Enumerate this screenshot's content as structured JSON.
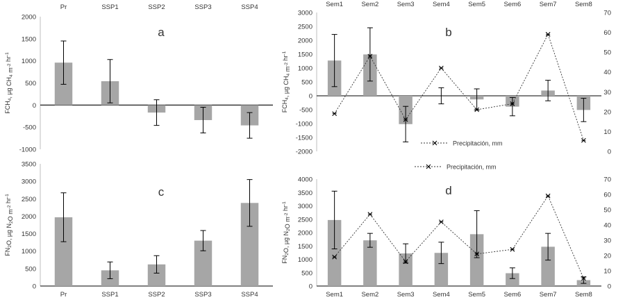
{
  "colors": {
    "bar": "#a6a6a6",
    "axis": "#000000",
    "line": "#333333",
    "text": "#404040"
  },
  "chart_data": [
    {
      "panel": "a",
      "type": "bar",
      "categories": [
        "Pr",
        "SSP1",
        "SSP2",
        "SSP3",
        "SSP4"
      ],
      "values": [
        960,
        540,
        -170,
        -340,
        -460
      ],
      "errors": [
        490,
        490,
        290,
        290,
        290
      ],
      "ylabel": "FCH4, µg CH4 m-2 hr-1",
      "ylim": [
        -1000,
        2000
      ],
      "yticks": [
        "2000",
        "1500",
        "1000",
        "500",
        "0",
        "-500",
        "-1000"
      ],
      "category_axis": "top",
      "grid": false
    },
    {
      "panel": "b",
      "type": "bar+line",
      "categories": [
        "Sem1",
        "Sem2",
        "Sem3",
        "Sem4",
        "Sem5",
        "Sem6",
        "Sem7",
        "Sem8"
      ],
      "values": [
        1270,
        1490,
        -1020,
        0,
        -130,
        -390,
        190,
        -510
      ],
      "errors": [
        940,
        960,
        640,
        290,
        380,
        330,
        370,
        420
      ],
      "ylabel": "FCH4, µg CH4 m-2 hr-1",
      "ylim": [
        -2000,
        3000
      ],
      "yticks": [
        "3000",
        "2500",
        "2000",
        "1500",
        "1000",
        "500",
        "0",
        "-500",
        "-1000",
        "-1500",
        "-2000"
      ],
      "y2lim": [
        0,
        70
      ],
      "y2ticks": [
        "70",
        "60",
        "50",
        "40",
        "30",
        "20",
        "10",
        "0"
      ],
      "line_values": [
        19,
        48,
        16,
        42,
        21,
        24,
        59,
        5.5
      ],
      "line_label": "Precipitación, mm",
      "category_axis": "top",
      "grid": false
    },
    {
      "panel": "c",
      "type": "bar",
      "categories": [
        "Pr",
        "SSP1",
        "SSP2",
        "SSP3",
        "SSP4"
      ],
      "values": [
        1970,
        450,
        620,
        1300,
        2380
      ],
      "errors": [
        700,
        240,
        250,
        290,
        670
      ],
      "ylabel": "FN2O, µg N2O m-2 hr-1",
      "ylim": [
        0,
        3500
      ],
      "yticks": [
        "3500",
        "3000",
        "2500",
        "2000",
        "1500",
        "1000",
        "500",
        "0"
      ],
      "category_axis": "bottom",
      "grid": false
    },
    {
      "panel": "d",
      "type": "bar+line",
      "categories": [
        "Sem1",
        "Sem2",
        "Sem3",
        "Sem4",
        "Sem5",
        "Sem6",
        "Sem7",
        "Sem8"
      ],
      "values": [
        2470,
        1710,
        1220,
        1240,
        1940,
        480,
        1470,
        220
      ],
      "errors": [
        1080,
        260,
        360,
        400,
        880,
        200,
        500,
        120
      ],
      "ylabel": "FN2O, µg N2O m-2 hr-1",
      "ylim": [
        0,
        4000
      ],
      "yticks": [
        "4000",
        "3500",
        "3000",
        "2500",
        "2000",
        "1500",
        "1000",
        "500",
        "0"
      ],
      "y2lim": [
        0,
        70
      ],
      "y2ticks": [
        "70",
        "60",
        "50",
        "40",
        "30",
        "20",
        "10",
        "0"
      ],
      "line_values": [
        19,
        47,
        16,
        42,
        21,
        24,
        59,
        5
      ],
      "line_label": "Precipitación, mm",
      "category_axis": "bottom",
      "grid": false
    }
  ]
}
